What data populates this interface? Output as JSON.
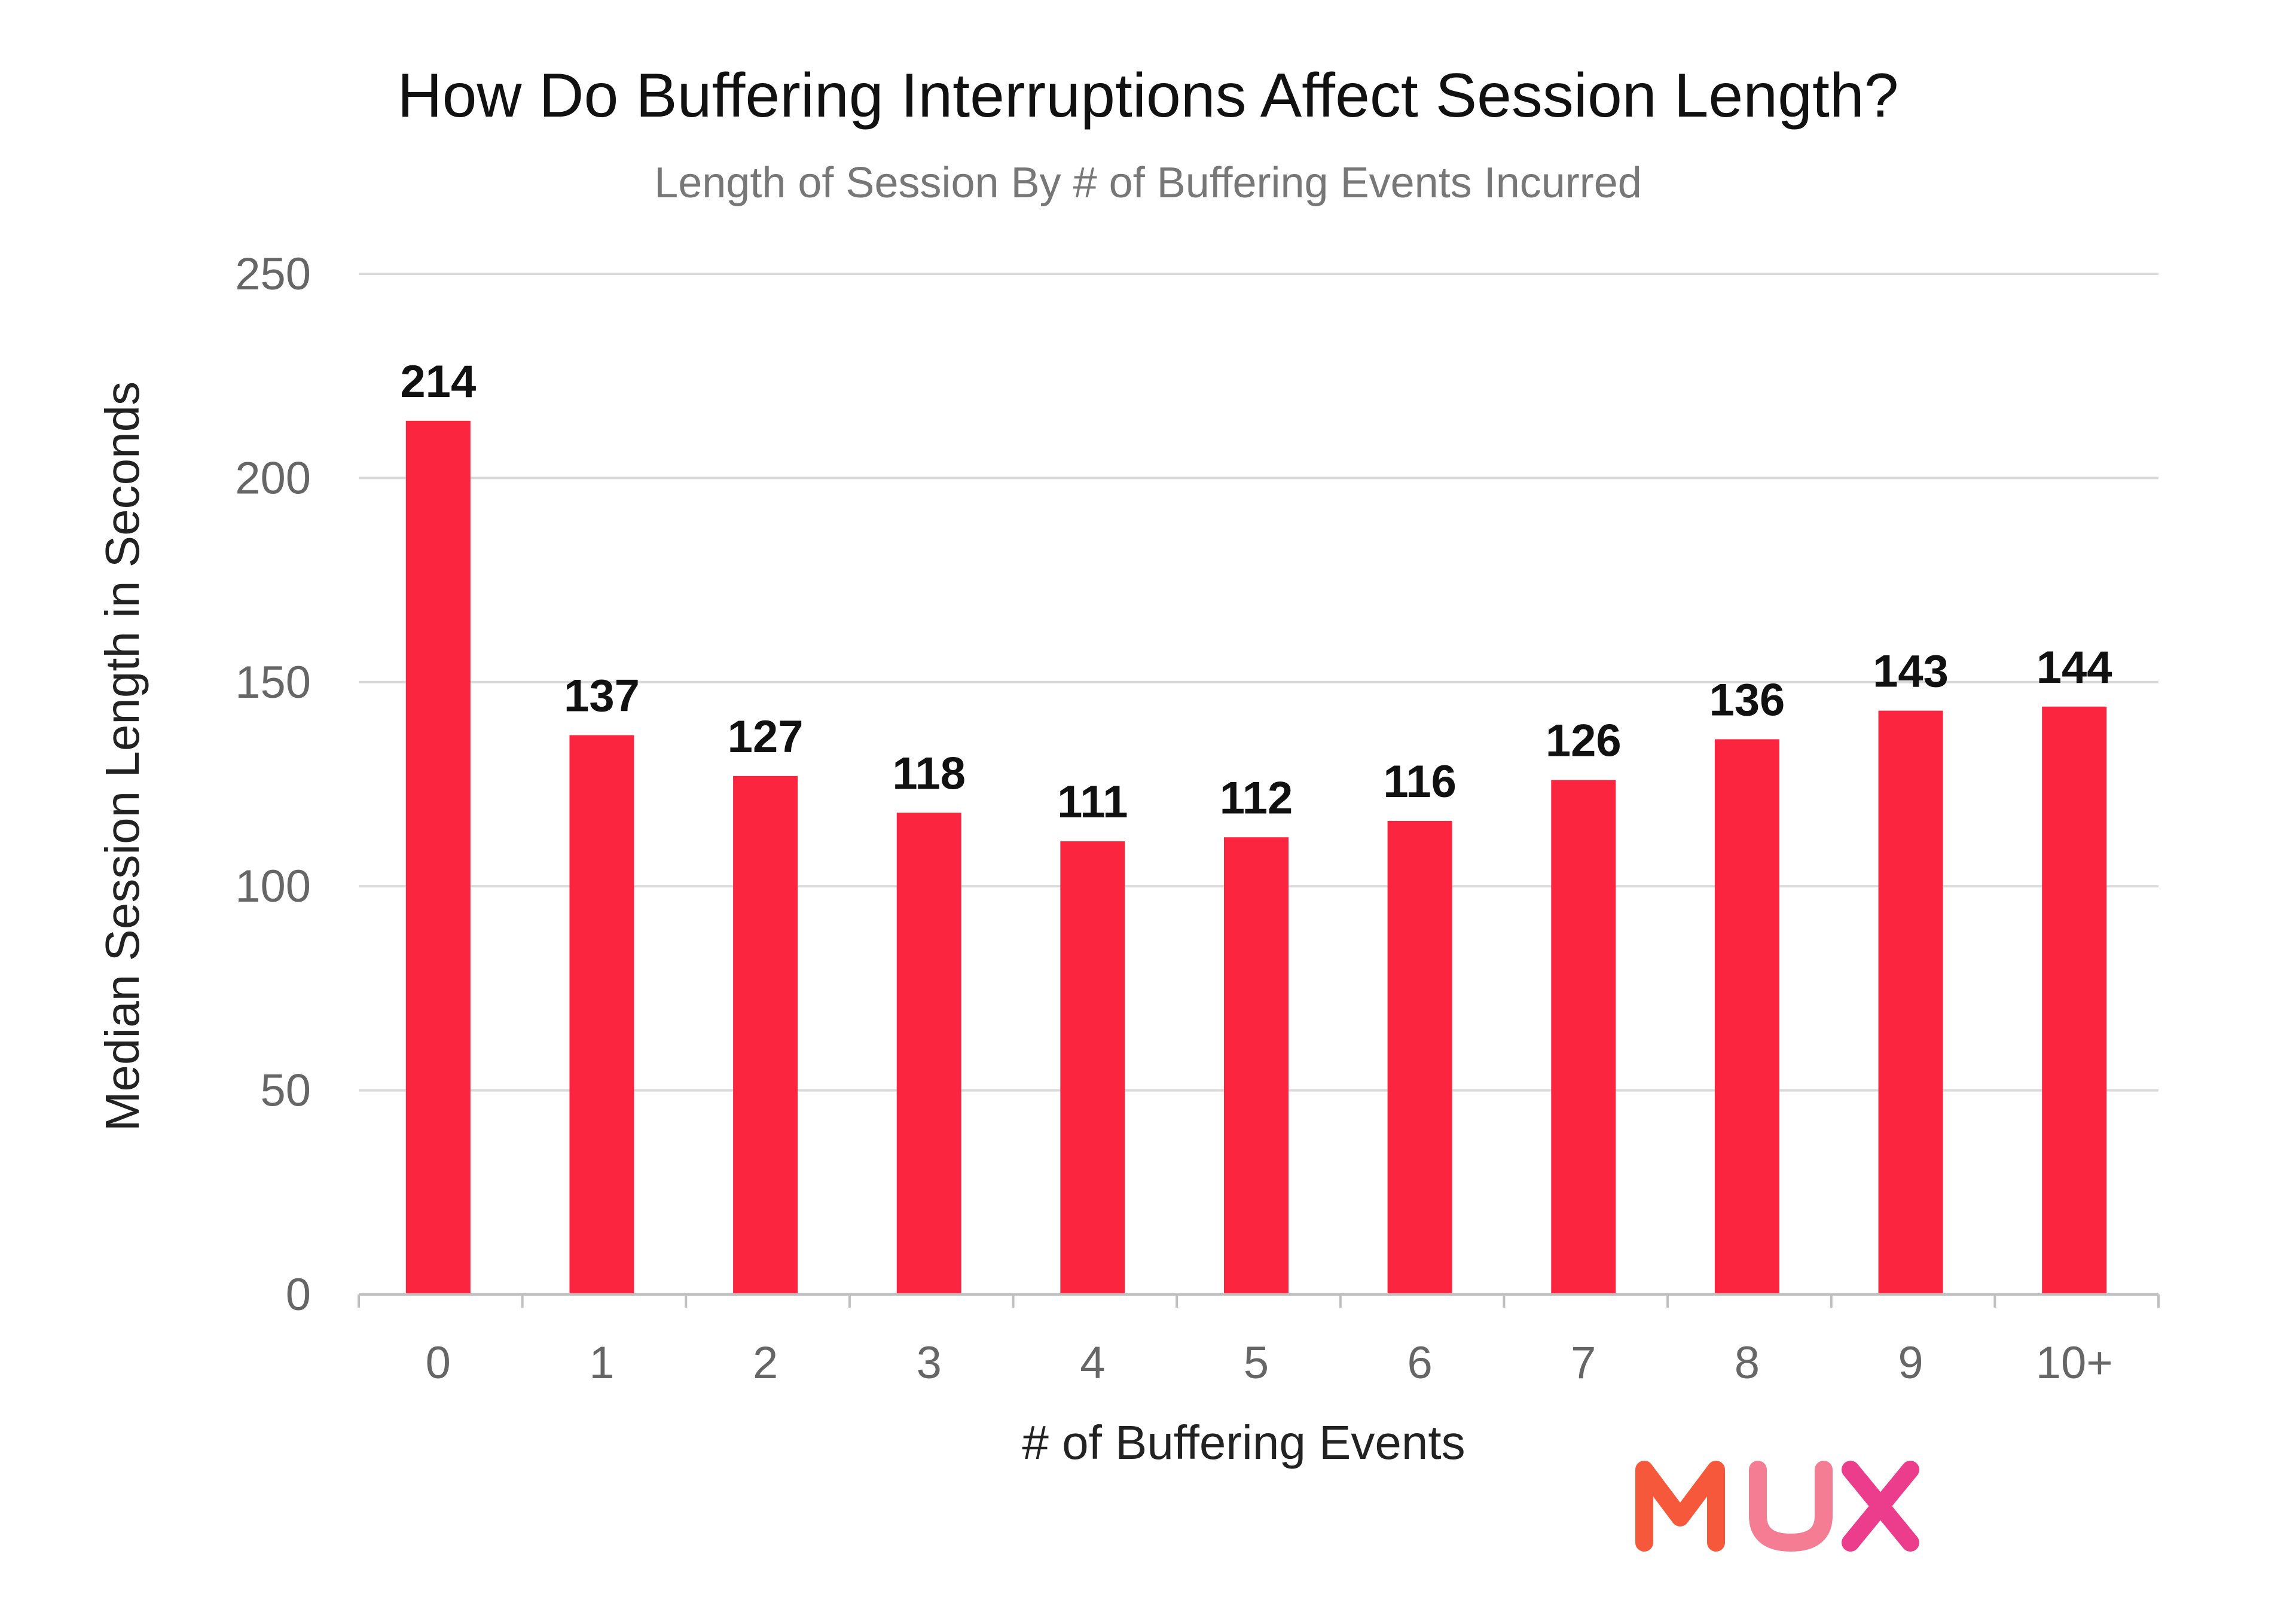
{
  "chart_data": {
    "type": "bar",
    "title": "How Do Buffering Interruptions Affect Session Length?",
    "subtitle": "Length of Session By # of Buffering Events Incurred",
    "xlabel": "# of Buffering Events",
    "ylabel": "Median Session Length in Seconds",
    "categories": [
      "0",
      "1",
      "2",
      "3",
      "4",
      "5",
      "6",
      "7",
      "8",
      "9",
      "10+"
    ],
    "values": [
      214,
      137,
      127,
      118,
      111,
      112,
      116,
      126,
      136,
      143,
      144
    ],
    "ylim": [
      0,
      250
    ],
    "yticks": [
      "0",
      "50",
      "100",
      "150",
      "200",
      "250"
    ],
    "grid": true,
    "bar_color": "#fb2540"
  },
  "logo": {
    "text": "MUX",
    "colors": [
      "#f5583a",
      "#f57d93",
      "#ec3d8c"
    ]
  }
}
